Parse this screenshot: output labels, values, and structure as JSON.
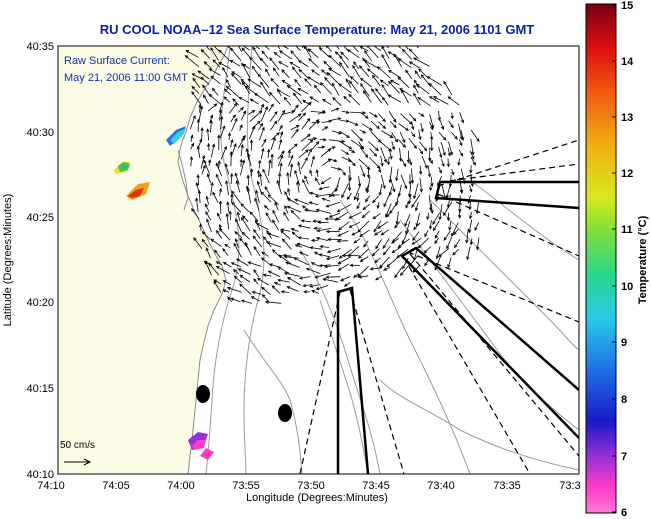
{
  "title": "RU COOL  NOAA–12  Sea Surface Temperature:  May 21, 2006 1101 GMT",
  "annotation": {
    "line1": "Raw Surface Current:",
    "line2": "May 21, 2006 11:00 GMT"
  },
  "scale_label": "50 cm/s",
  "xaxis": {
    "label": "Longitude (Degrees:Minutes)",
    "ticks": [
      "74:10",
      "74:05",
      "74:00",
      "73:55",
      "73:50",
      "73:45",
      "73:40",
      "73:35",
      "73:3"
    ]
  },
  "yaxis": {
    "label": "Latitude (Degrees:Minutes)",
    "ticks": [
      "40:35",
      "40:30",
      "40:25",
      "40:20",
      "40:15",
      "40:10"
    ]
  },
  "colorbar": {
    "label": "Temperature (°C)",
    "ticks": [
      "15",
      "14",
      "13",
      "12",
      "11",
      "10",
      "9",
      "8",
      "7",
      "6"
    ],
    "range": [
      6,
      15
    ]
  },
  "colors": {
    "title": "#0a1fa8",
    "annotation": "#1630a8",
    "land": "#fcfce6",
    "contour": "#9a9a9a",
    "arrows": "#000000"
  },
  "icons": {
    "scale_arrow": "right-arrow-icon"
  }
}
